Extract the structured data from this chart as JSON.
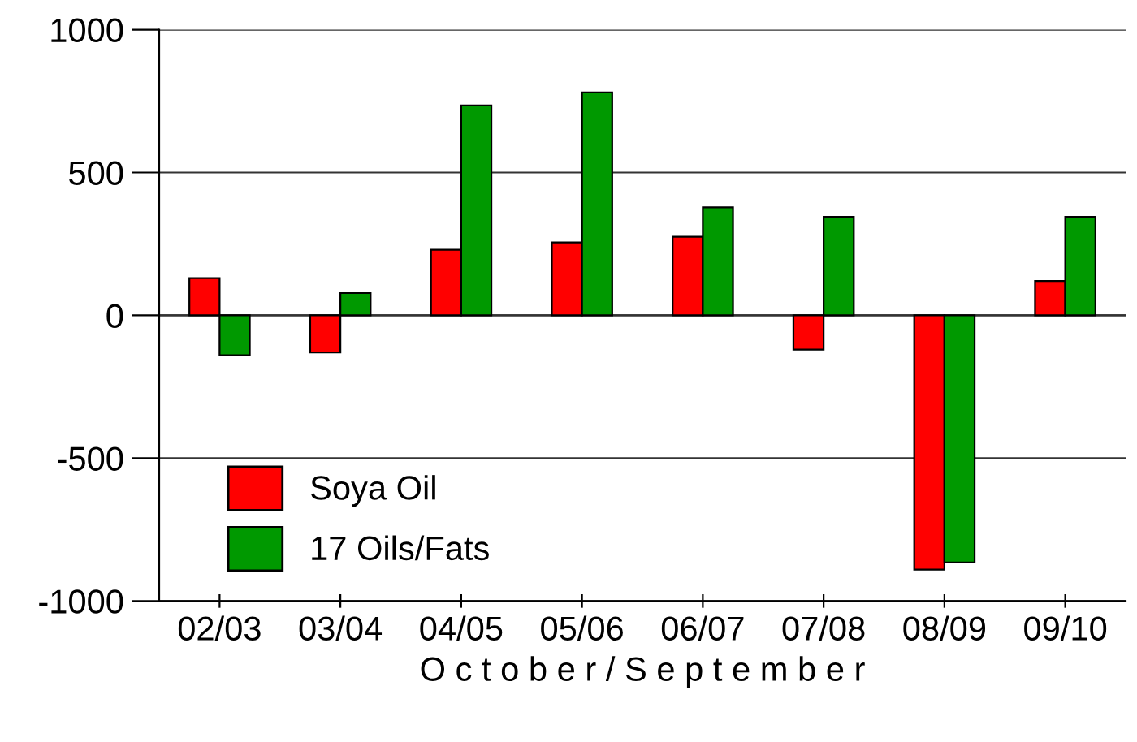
{
  "chart_data": {
    "type": "bar",
    "xlabel": "O c t o b e r / S e p t e m b e r",
    "categories": [
      "02/03",
      "03/04",
      "04/05",
      "05/06",
      "06/07",
      "07/08",
      "08/09",
      "09/10"
    ],
    "series": [
      {
        "name": "Soya Oil",
        "color": "#ff0000",
        "values": [
          130,
          -130,
          230,
          255,
          275,
          -120,
          -890,
          120
        ]
      },
      {
        "name": "17 Oils/Fats",
        "color": "#009900",
        "values": [
          -140,
          78,
          735,
          780,
          378,
          345,
          -865,
          345
        ]
      }
    ],
    "ylim": [
      -1000,
      1000
    ],
    "yticks": [
      -1000,
      -500,
      0,
      500,
      1000
    ],
    "grid": "y",
    "legend": "bottom left"
  }
}
